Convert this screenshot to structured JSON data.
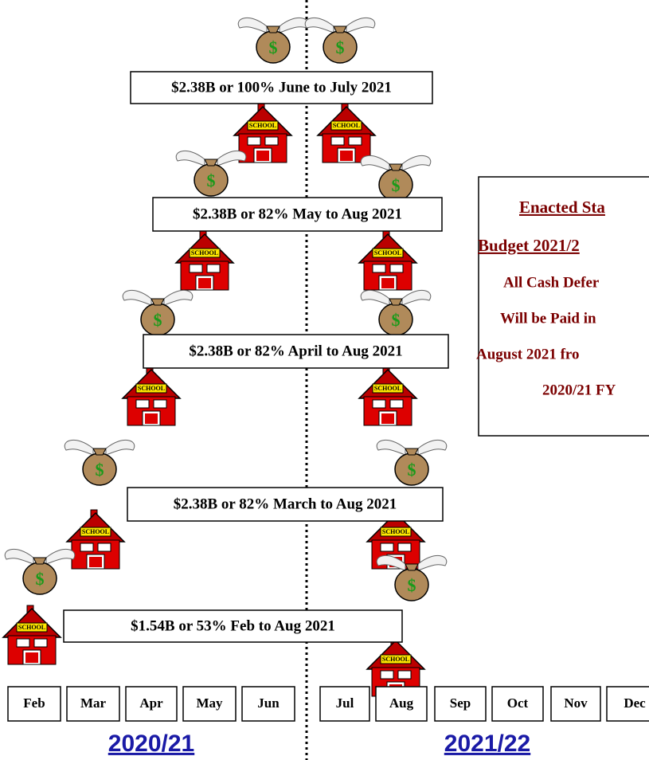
{
  "labels": [
    "$2.38B or 100% June to July 2021",
    "$2.38B or 82% May to Aug 2021",
    "$2.38B  or 82% April to Aug 2021",
    "$2.38B or 82% March to Aug 2021",
    "$1.54B or 53% Feb to Aug 2021"
  ],
  "sidebar": {
    "title": [
      "Enacted Sta",
      "Budget 2021/2"
    ],
    "lines": [
      "All Cash Defer",
      "Will be Paid in",
      "August 2021 fro",
      "2020/21 FY"
    ]
  },
  "months": [
    "Feb",
    "Mar",
    "Apr",
    "May",
    "Jun",
    "Jul",
    "Aug",
    "Sep",
    "Oct",
    "Nov",
    "Dec"
  ],
  "years": [
    "2020/21",
    "2021/22"
  ],
  "school_sign": "SCHOOL",
  "bag_symbol": "$"
}
